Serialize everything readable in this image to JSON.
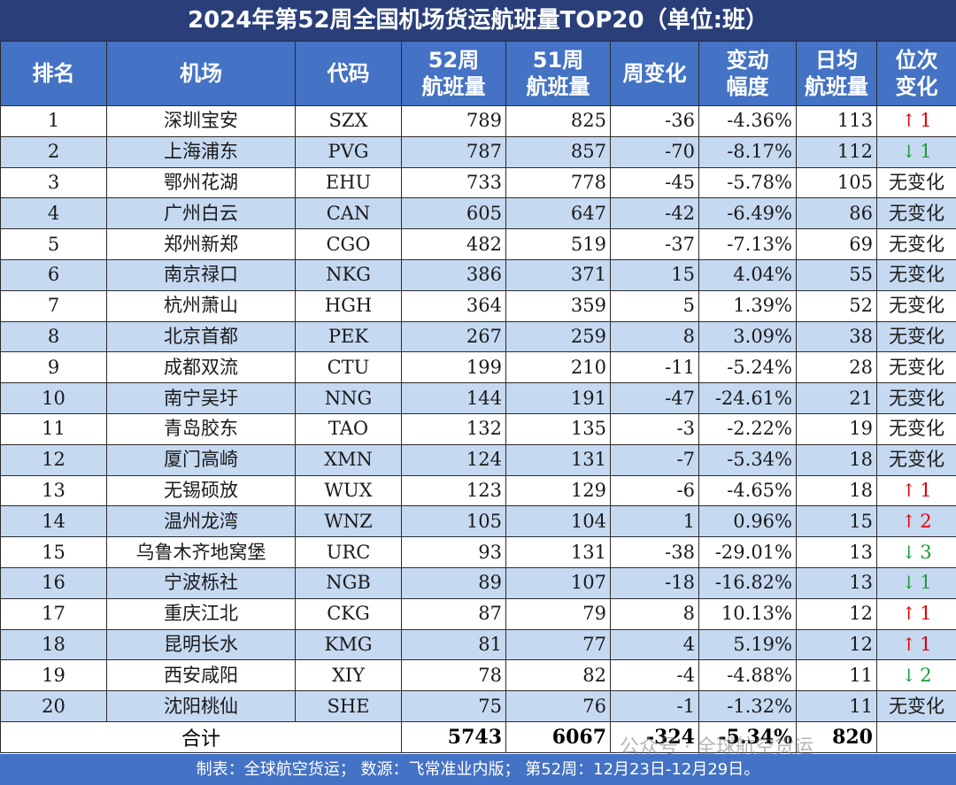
{
  "title": "2024年第52周全国机场货运航班量TOP20（单位:班）",
  "headers": {
    "rank": "排名",
    "airport": "机场",
    "code": "代码",
    "w52_l1": "52周",
    "w52_l2": "航班量",
    "w51_l1": "51周",
    "w51_l2": "航班量",
    "change": "周变化",
    "pct_l1": "变动",
    "pct_l2": "幅度",
    "avg_l1": "日均",
    "avg_l2": "航班量",
    "pos_l1": "位次",
    "pos_l2": "变化"
  },
  "rows": [
    {
      "rank": "1",
      "airport": "深圳宝安",
      "code": "SZX",
      "w52": "789",
      "w51": "825",
      "change": "-36",
      "pct": "-4.36%",
      "avg": "113",
      "pos": {
        "dir": "up",
        "arrow": "↑",
        "num": "1"
      }
    },
    {
      "rank": "2",
      "airport": "上海浦东",
      "code": "PVG",
      "w52": "787",
      "w51": "857",
      "change": "-70",
      "pct": "-8.17%",
      "avg": "112",
      "pos": {
        "dir": "down",
        "arrow": "↓",
        "num": "1"
      }
    },
    {
      "rank": "3",
      "airport": "鄂州花湖",
      "code": "EHU",
      "w52": "733",
      "w51": "778",
      "change": "-45",
      "pct": "-5.78%",
      "avg": "105",
      "pos": {
        "dir": "none",
        "text": "无变化"
      }
    },
    {
      "rank": "4",
      "airport": "广州白云",
      "code": "CAN",
      "w52": "605",
      "w51": "647",
      "change": "-42",
      "pct": "-6.49%",
      "avg": "86",
      "pos": {
        "dir": "none",
        "text": "无变化"
      }
    },
    {
      "rank": "5",
      "airport": "郑州新郑",
      "code": "CGO",
      "w52": "482",
      "w51": "519",
      "change": "-37",
      "pct": "-7.13%",
      "avg": "69",
      "pos": {
        "dir": "none",
        "text": "无变化"
      }
    },
    {
      "rank": "6",
      "airport": "南京禄口",
      "code": "NKG",
      "w52": "386",
      "w51": "371",
      "change": "15",
      "pct": "4.04%",
      "avg": "55",
      "pos": {
        "dir": "none",
        "text": "无变化"
      }
    },
    {
      "rank": "7",
      "airport": "杭州萧山",
      "code": "HGH",
      "w52": "364",
      "w51": "359",
      "change": "5",
      "pct": "1.39%",
      "avg": "52",
      "pos": {
        "dir": "none",
        "text": "无变化"
      }
    },
    {
      "rank": "8",
      "airport": "北京首都",
      "code": "PEK",
      "w52": "267",
      "w51": "259",
      "change": "8",
      "pct": "3.09%",
      "avg": "38",
      "pos": {
        "dir": "none",
        "text": "无变化"
      }
    },
    {
      "rank": "9",
      "airport": "成都双流",
      "code": "CTU",
      "w52": "199",
      "w51": "210",
      "change": "-11",
      "pct": "-5.24%",
      "avg": "28",
      "pos": {
        "dir": "none",
        "text": "无变化"
      }
    },
    {
      "rank": "10",
      "airport": "南宁吴圩",
      "code": "NNG",
      "w52": "144",
      "w51": "191",
      "change": "-47",
      "pct": "-24.61%",
      "avg": "21",
      "pos": {
        "dir": "none",
        "text": "无变化"
      }
    },
    {
      "rank": "11",
      "airport": "青岛胶东",
      "code": "TAO",
      "w52": "132",
      "w51": "135",
      "change": "-3",
      "pct": "-2.22%",
      "avg": "19",
      "pos": {
        "dir": "none",
        "text": "无变化"
      }
    },
    {
      "rank": "12",
      "airport": "厦门高崎",
      "code": "XMN",
      "w52": "124",
      "w51": "131",
      "change": "-7",
      "pct": "-5.34%",
      "avg": "18",
      "pos": {
        "dir": "none",
        "text": "无变化"
      }
    },
    {
      "rank": "13",
      "airport": "无锡硕放",
      "code": "WUX",
      "w52": "123",
      "w51": "129",
      "change": "-6",
      "pct": "-4.65%",
      "avg": "18",
      "pos": {
        "dir": "up",
        "arrow": "↑",
        "num": "1"
      }
    },
    {
      "rank": "14",
      "airport": "温州龙湾",
      "code": "WNZ",
      "w52": "105",
      "w51": "104",
      "change": "1",
      "pct": "0.96%",
      "avg": "15",
      "pos": {
        "dir": "up",
        "arrow": "↑",
        "num": "2"
      }
    },
    {
      "rank": "15",
      "airport": "乌鲁木齐地窝堡",
      "code": "URC",
      "w52": "93",
      "w51": "131",
      "change": "-38",
      "pct": "-29.01%",
      "avg": "13",
      "pos": {
        "dir": "down",
        "arrow": "↓",
        "num": "3"
      }
    },
    {
      "rank": "16",
      "airport": "宁波栎社",
      "code": "NGB",
      "w52": "89",
      "w51": "107",
      "change": "-18",
      "pct": "-16.82%",
      "avg": "13",
      "pos": {
        "dir": "down",
        "arrow": "↓",
        "num": "1"
      }
    },
    {
      "rank": "17",
      "airport": "重庆江北",
      "code": "CKG",
      "w52": "87",
      "w51": "79",
      "change": "8",
      "pct": "10.13%",
      "avg": "12",
      "pos": {
        "dir": "up",
        "arrow": "↑",
        "num": "1"
      }
    },
    {
      "rank": "18",
      "airport": "昆明长水",
      "code": "KMG",
      "w52": "81",
      "w51": "77",
      "change": "4",
      "pct": "5.19%",
      "avg": "12",
      "pos": {
        "dir": "up",
        "arrow": "↑",
        "num": "1"
      }
    },
    {
      "rank": "19",
      "airport": "西安咸阳",
      "code": "XIY",
      "w52": "78",
      "w51": "82",
      "change": "-4",
      "pct": "-4.88%",
      "avg": "11",
      "pos": {
        "dir": "down",
        "arrow": "↓",
        "num": "2"
      }
    },
    {
      "rank": "20",
      "airport": "沈阳桃仙",
      "code": "SHE",
      "w52": "75",
      "w51": "76",
      "change": "-1",
      "pct": "-1.32%",
      "avg": "11",
      "pos": {
        "dir": "none",
        "text": "无变化"
      }
    }
  ],
  "total": {
    "label": "合计",
    "w52": "5743",
    "w51": "6067",
    "change": "-324",
    "pct": "-5.34%",
    "avg": "820"
  },
  "watermark": "公众号 · 全球航空货运",
  "footer": "制表：全球航空货运；  数源：飞常准业内版；  第52周：12月23日-12月29日。",
  "colors": {
    "title_bg": "#2a3f7a",
    "header_bg": "#4472c4",
    "stripe": "#c5d9f1",
    "up": "#e00000",
    "down": "#1a9a3a"
  }
}
